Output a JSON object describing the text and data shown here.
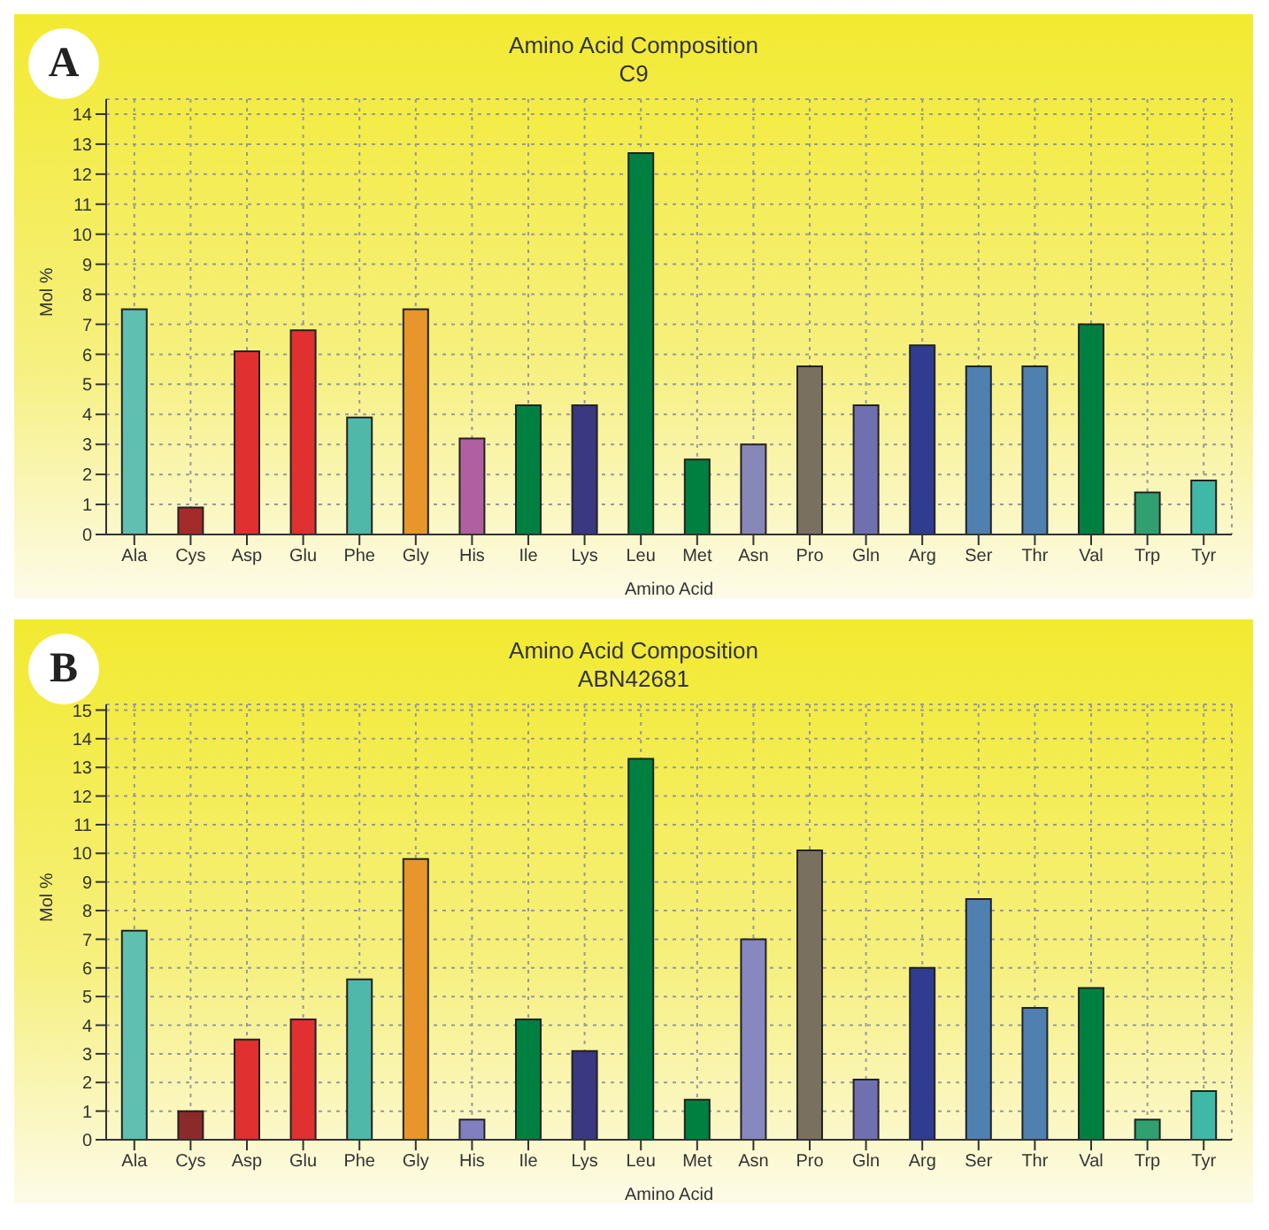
{
  "chart_data": [
    {
      "type": "bar",
      "title": "Amino Acid Composition",
      "subtitle": "C9",
      "xlabel": "Amino Acid",
      "ylabel": "Mol %",
      "annotations": [
        "A"
      ],
      "categories": [
        "Ala",
        "Cys",
        "Asp",
        "Glu",
        "Phe",
        "Gly",
        "His",
        "Ile",
        "Lys",
        "Leu",
        "Met",
        "Asn",
        "Pro",
        "Gln",
        "Arg",
        "Ser",
        "Thr",
        "Val",
        "Trp",
        "Tyr"
      ],
      "values": [
        7.5,
        0.9,
        6.1,
        6.8,
        3.9,
        7.5,
        3.2,
        4.3,
        4.3,
        12.7,
        2.5,
        3.0,
        5.6,
        4.3,
        6.3,
        5.6,
        5.6,
        7.0,
        1.4,
        1.8
      ],
      "colors": [
        "#5fbfb0",
        "#a52a2a",
        "#e03030",
        "#e03030",
        "#4fb8a8",
        "#e8952c",
        "#b060a0",
        "#008040",
        "#3a3880",
        "#008040",
        "#008040",
        "#8888b8",
        "#7a7060",
        "#7070b0",
        "#303c90",
        "#5080b0",
        "#5080b0",
        "#008040",
        "#30a070",
        "#40b8a8"
      ],
      "ylim": [
        0,
        14.5
      ],
      "yticks": [
        0,
        1,
        2,
        3,
        4,
        5,
        6,
        7,
        8,
        9,
        10,
        11,
        12,
        13,
        14
      ],
      "grid": true
    },
    {
      "type": "bar",
      "title": "Amino Acid Composition",
      "subtitle": "ABN42681",
      "xlabel": "Amino Acid",
      "ylabel": "Mol %",
      "annotations": [
        "B"
      ],
      "categories": [
        "Ala",
        "Cys",
        "Asp",
        "Glu",
        "Phe",
        "Gly",
        "His",
        "Ile",
        "Lys",
        "Leu",
        "Met",
        "Asn",
        "Pro",
        "Gln",
        "Arg",
        "Ser",
        "Thr",
        "Val",
        "Trp",
        "Tyr"
      ],
      "values": [
        7.3,
        1.0,
        3.5,
        4.2,
        5.6,
        9.8,
        0.7,
        4.2,
        3.1,
        13.3,
        1.4,
        7.0,
        10.1,
        2.1,
        6.0,
        8.4,
        4.6,
        5.3,
        0.7,
        1.7
      ],
      "colors": [
        "#5fbfb0",
        "#8b2a2a",
        "#e03030",
        "#e03030",
        "#4fb8a8",
        "#e8952c",
        "#8080c0",
        "#008040",
        "#3a3880",
        "#008040",
        "#008040",
        "#8888c0",
        "#7a7060",
        "#7070b0",
        "#303c90",
        "#5080b0",
        "#5080b0",
        "#008040",
        "#30a070",
        "#40b8a8"
      ],
      "ylim": [
        0,
        15.2
      ],
      "yticks": [
        0,
        1,
        2,
        3,
        4,
        5,
        6,
        7,
        8,
        9,
        10,
        11,
        12,
        13,
        14,
        15
      ],
      "grid": true
    }
  ]
}
